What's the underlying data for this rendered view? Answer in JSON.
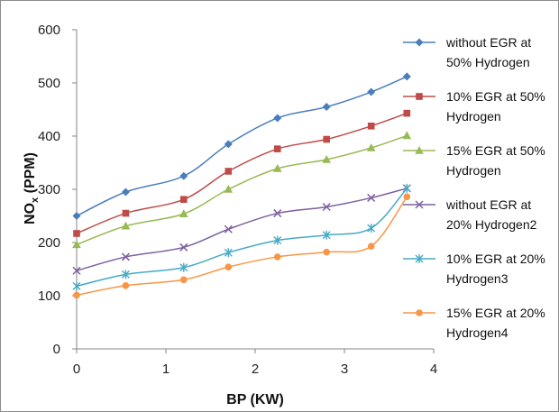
{
  "chart_data": {
    "type": "line",
    "title": "",
    "xlabel": "BP (KW)",
    "ylabel_main": "NO",
    "ylabel_sub": "x",
    "ylabel_rest": " (PPM)",
    "xlim": [
      0,
      4
    ],
    "ylim": [
      0,
      600
    ],
    "xticks": [
      "0",
      "1",
      "2",
      "3",
      "4"
    ],
    "yticks": [
      "0",
      "100",
      "200",
      "300",
      "400",
      "500",
      "600"
    ],
    "grid": false,
    "legend_position": "right",
    "x": [
      0,
      0.55,
      1.2,
      1.7,
      2.25,
      2.8,
      3.3,
      3.7
    ],
    "series": [
      {
        "name_lines": [
          "without EGR at",
          "50% Hydrogen"
        ],
        "color": "#4a7ebb",
        "marker": "diamond",
        "values": [
          250,
          295,
          325,
          385,
          434,
          455,
          483,
          512
        ]
      },
      {
        "name_lines": [
          "10% EGR  at 50%",
          "Hydrogen"
        ],
        "color": "#be4b48",
        "marker": "square",
        "values": [
          217,
          255,
          281,
          334,
          376,
          394,
          419,
          443
        ]
      },
      {
        "name_lines": [
          "15% EGR  at 50%",
          "Hydrogen"
        ],
        "color": "#98b954",
        "marker": "triangle",
        "values": [
          196,
          231,
          254,
          300,
          339,
          356,
          378,
          401
        ]
      },
      {
        "name_lines": [
          "without EGR at",
          "20% Hydrogen2"
        ],
        "color": "#7d60a0",
        "marker": "x",
        "values": [
          147,
          173,
          191,
          225,
          255,
          267,
          284,
          302
        ]
      },
      {
        "name_lines": [
          "10% EGR  at 20%",
          "Hydrogen3"
        ],
        "color": "#46aac5",
        "marker": "star",
        "values": [
          118,
          140,
          153,
          181,
          204,
          214,
          227,
          302
        ]
      },
      {
        "name_lines": [
          "15% EGR  at 20%",
          "Hydrogen4"
        ],
        "color": "#f79646",
        "marker": "circle",
        "values": [
          101,
          119,
          130,
          154,
          173,
          182,
          193,
          286
        ]
      }
    ]
  }
}
